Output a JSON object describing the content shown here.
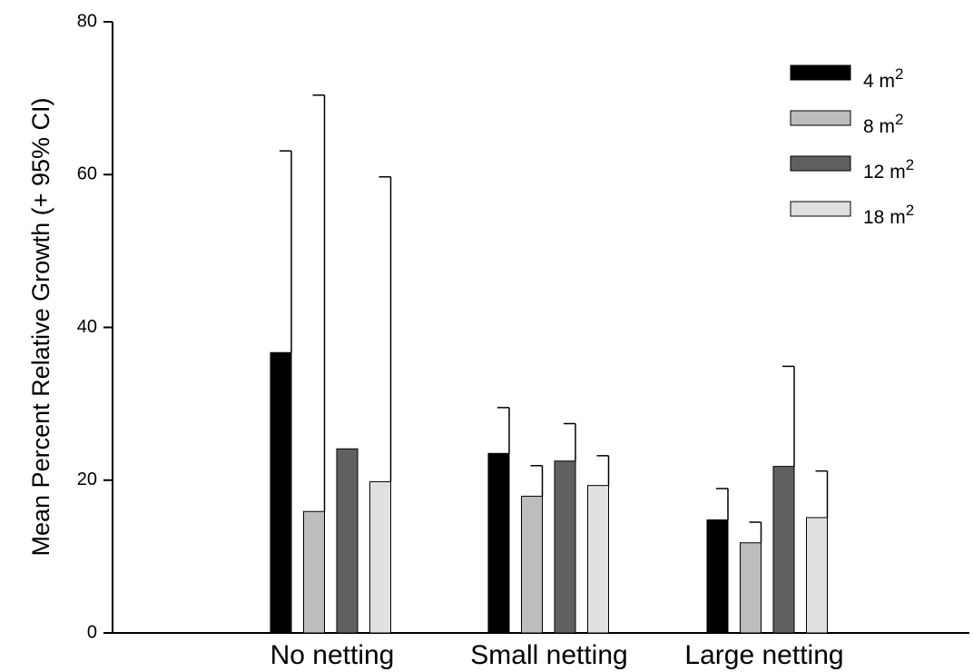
{
  "chart_data": {
    "type": "bar",
    "title": "",
    "xlabel": "",
    "ylabel": "Mean Percent Relative Growth (+ 95% CI)",
    "ylim": [
      0,
      80
    ],
    "yticks": [
      "0",
      "20",
      "40",
      "60",
      "80"
    ],
    "grid": false,
    "legend_position": "top-right",
    "categories": [
      "No netting",
      "Small netting",
      "Large netting"
    ],
    "series": [
      {
        "name": "4 m",
        "sup": "2",
        "color": "#000000",
        "values": [
          36.7,
          23.5,
          14.8
        ],
        "ci_upper": [
          63.1,
          29.5,
          18.9
        ]
      },
      {
        "name": "8 m",
        "sup": "2",
        "color": "#bdbdbd",
        "values": [
          15.9,
          17.9,
          11.8
        ],
        "ci_upper": [
          70.4,
          21.9,
          14.5
        ]
      },
      {
        "name": "12 m",
        "sup": "2",
        "color": "#606060",
        "values": [
          24.1,
          22.5,
          21.8
        ],
        "ci_upper": [
          24.1,
          27.4,
          34.9
        ]
      },
      {
        "name": "18 m",
        "sup": "2",
        "color": "#e0e0e0",
        "values": [
          19.8,
          19.3,
          15.1
        ],
        "ci_upper": [
          59.7,
          23.2,
          21.2
        ]
      }
    ]
  }
}
